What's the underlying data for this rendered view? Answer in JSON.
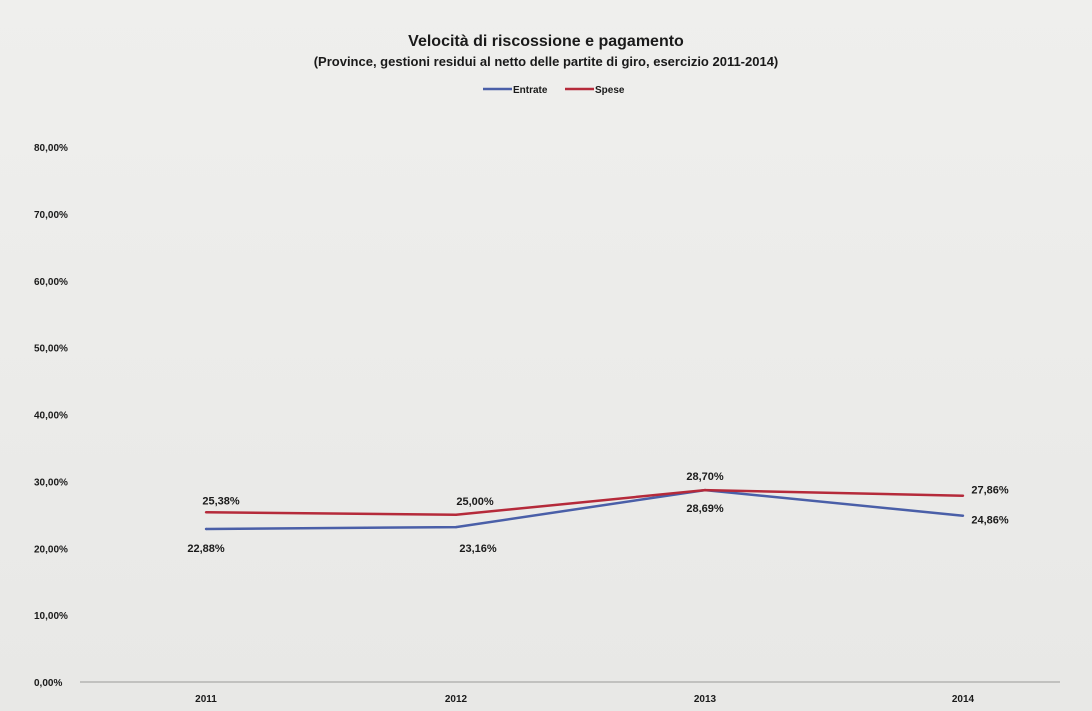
{
  "chart_data": {
    "type": "line",
    "title": "Velocità di riscossione e pagamento",
    "subtitle": "(Province, gestioni residui al netto delle partite di giro, esercizio 2011-2014)",
    "xlabel": "",
    "ylabel": "",
    "categories": [
      "2011",
      "2012",
      "2013",
      "2014"
    ],
    "ylim": [
      0,
      80
    ],
    "yticks": [
      0,
      10,
      20,
      30,
      40,
      50,
      60,
      70,
      80
    ],
    "ytick_labels": [
      "0,00%",
      "10,00%",
      "20,00%",
      "30,00%",
      "40,00%",
      "50,00%",
      "60,00%",
      "70,00%",
      "80,00%"
    ],
    "grid": false,
    "legend_position": "top-center",
    "series": [
      {
        "name": "Entrate",
        "color": "#4a5fa8",
        "values": [
          22.88,
          23.16,
          28.69,
          24.86
        ],
        "labels": [
          "22,88%",
          "23,16%",
          "28,69%",
          "24,86%"
        ]
      },
      {
        "name": "Spese",
        "color": "#b52a3a",
        "values": [
          25.38,
          25.0,
          28.7,
          27.86
        ],
        "labels": [
          "25,38%",
          "25,00%",
          "28,70%",
          "27,86%"
        ]
      }
    ]
  }
}
